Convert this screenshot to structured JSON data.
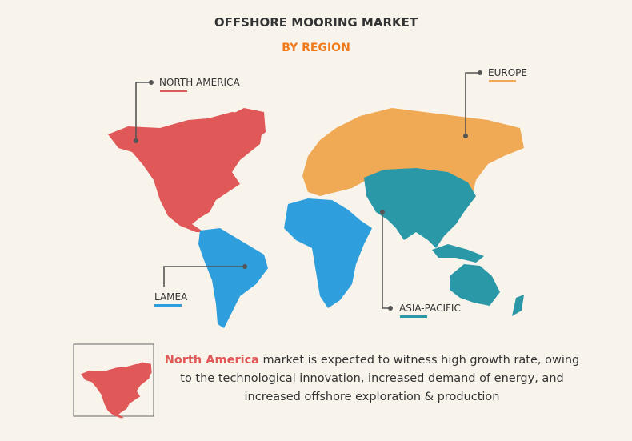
{
  "header": {
    "title": "OFFSHORE MOORING MARKET",
    "subtitle": "BY REGION"
  },
  "regions": [
    {
      "label": "NORTH AMERICA",
      "color": "#e05858"
    },
    {
      "label": "EUROPE",
      "color": "#f0aa55"
    },
    {
      "label": "LAMEA",
      "color": "#2e9fdc"
    },
    {
      "label": "ASIA-PACIFIC",
      "color": "#2b98a7"
    }
  ],
  "note": {
    "highlight": "North America",
    "text": " market is expected to witness high growth rate, owing to the technological innovation, increased demand of energy, and increased offshore exploration & production"
  }
}
